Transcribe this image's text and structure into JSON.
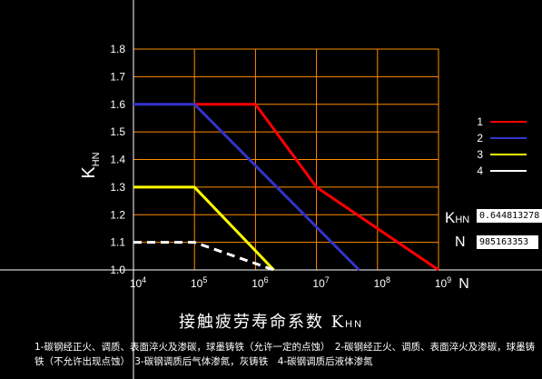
{
  "chart_data": {
    "type": "line",
    "title": "接触疲劳寿命系数 K",
    "title_subscript": "HN",
    "xlabel": "N",
    "ylabel": "K",
    "ylabel_subscript": "HN",
    "x_scale": "log",
    "xlim": [
      10000,
      1000000000
    ],
    "ylim": [
      1.0,
      1.8
    ],
    "grid": true,
    "grid_color": "#ff8c00",
    "x_ticks": [
      {
        "value": 10000,
        "base": "10",
        "exp": "4"
      },
      {
        "value": 100000,
        "base": "10",
        "exp": "5"
      },
      {
        "value": 1000000,
        "base": "10",
        "exp": "6"
      },
      {
        "value": 10000000,
        "base": "10",
        "exp": "7"
      },
      {
        "value": 100000000,
        "base": "10",
        "exp": "8"
      },
      {
        "value": 1000000000,
        "base": "10",
        "exp": "9"
      }
    ],
    "y_ticks": [
      "1.0",
      "1.1",
      "1.2",
      "1.3",
      "1.4",
      "1.5",
      "1.6",
      "1.7",
      "1.8"
    ],
    "legend_position": "right",
    "series": [
      {
        "name": "1",
        "color": "#ff0000",
        "dash": false,
        "points": [
          [
            100000,
            1.6
          ],
          [
            1000000,
            1.6
          ],
          [
            10000000,
            1.3
          ],
          [
            1000000000,
            1.0
          ]
        ]
      },
      {
        "name": "2",
        "color": "#3333cc",
        "dash": false,
        "points": [
          [
            10000,
            1.6
          ],
          [
            100000,
            1.6
          ],
          [
            50000000,
            1.0
          ]
        ]
      },
      {
        "name": "3",
        "color": "#ffff00",
        "dash": false,
        "points": [
          [
            10000,
            1.3
          ],
          [
            100000,
            1.3
          ],
          [
            2000000,
            1.0
          ]
        ]
      },
      {
        "name": "4",
        "color": "#ffffff",
        "dash": true,
        "points": [
          [
            10000,
            1.1
          ],
          [
            100000,
            1.1
          ],
          [
            2000000,
            1.0
          ]
        ]
      }
    ]
  },
  "readout": {
    "khn_label": "K",
    "khn_sub": "HN",
    "khn_value": "0.644813278",
    "n_label": "N",
    "n_value": "985163353"
  },
  "caption": "1-碳钢经正火、调质、表面淬火及渗碳，球墨铸铁（允许一定的点蚀）　2-碳钢经正火、调质、表面淬火及渗碳，球墨铸铁（不允许出现点蚀）　3-碳钢调质后气体渗氮，灰铸铁　4-碳钢调质后液体渗氮"
}
